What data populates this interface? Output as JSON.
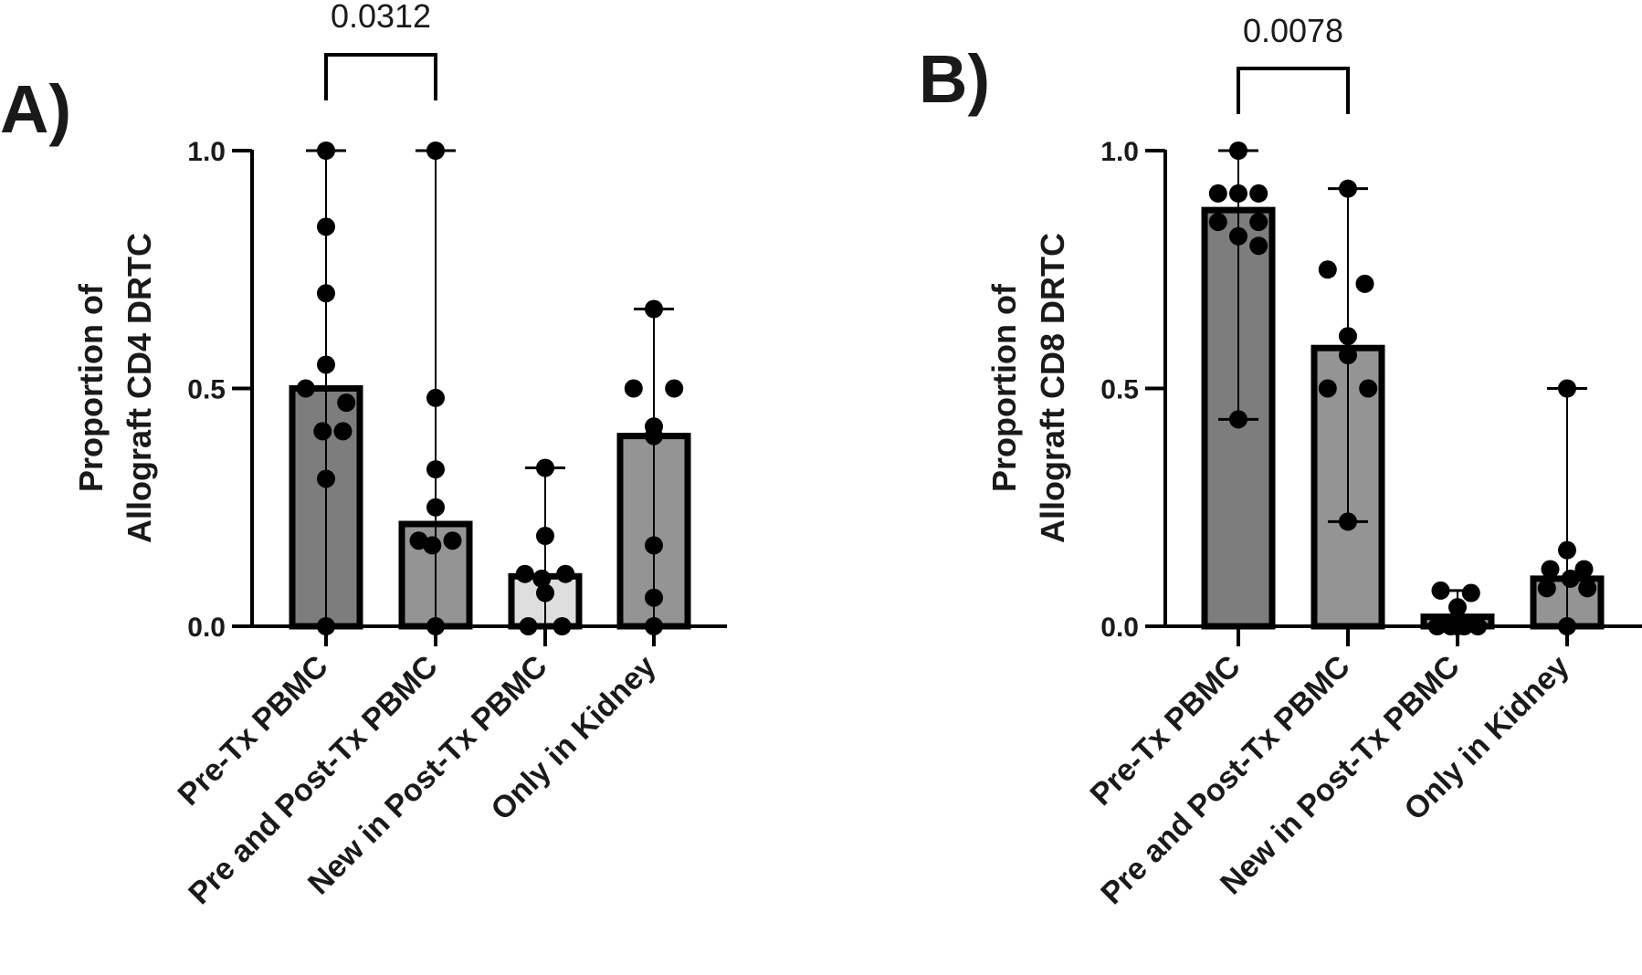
{
  "chart_data": [
    {
      "type": "bar",
      "panel_label": "A)",
      "ylabel_lines": [
        "Proportion of",
        "Allograft CD4 DRTC"
      ],
      "ylim": [
        0,
        1
      ],
      "yticks": [
        0,
        0.5,
        1
      ],
      "ytick_labels": [
        "0.0",
        "0.5",
        "1.0"
      ],
      "categories": [
        "Pre-Tx PBMC",
        "Pre and Post-Tx PBMC",
        "New in Post-Tx PBMC",
        "Only in Kidney"
      ],
      "values": [
        0.5,
        0.215,
        0.105,
        0.4
      ],
      "ranges": [
        [
          0,
          1.0
        ],
        [
          0,
          1.0
        ],
        [
          0,
          0.333
        ],
        [
          0,
          0.667
        ]
      ],
      "bar_colors": [
        "#7d7d7d",
        "#949494",
        "#dedede",
        "#949494"
      ],
      "points": [
        [
          [
            0,
            1.0
          ],
          [
            0,
            0.84
          ],
          [
            0,
            0.7
          ],
          [
            0,
            0.55
          ],
          [
            -0.3,
            0.5
          ],
          [
            0.3,
            0.47
          ],
          [
            -0.05,
            0.41
          ],
          [
            0.25,
            0.41
          ],
          [
            0,
            0.31
          ],
          [
            0,
            0.0
          ]
        ],
        [
          [
            0,
            1.0
          ],
          [
            0,
            0.48
          ],
          [
            0,
            0.33
          ],
          [
            0,
            0.25
          ],
          [
            -0.25,
            0.18
          ],
          [
            0.25,
            0.18
          ],
          [
            -0.05,
            0.17
          ],
          [
            0,
            0.0
          ]
        ],
        [
          [
            0,
            0.333
          ],
          [
            0,
            0.19
          ],
          [
            -0.3,
            0.11
          ],
          [
            0.3,
            0.11
          ],
          [
            -0.05,
            0.1
          ],
          [
            0,
            0.07
          ],
          [
            -0.25,
            0.0
          ],
          [
            0.25,
            0.0
          ]
        ],
        [
          [
            0,
            0.667
          ],
          [
            -0.3,
            0.5
          ],
          [
            0.3,
            0.5
          ],
          [
            0,
            0.42
          ],
          [
            0,
            0.4
          ],
          [
            0,
            0.17
          ],
          [
            0,
            0.06
          ],
          [
            0,
            0.0
          ]
        ]
      ],
      "significance": {
        "pair": [
          0,
          1
        ],
        "label": "0.0312"
      }
    },
    {
      "type": "bar",
      "panel_label": "B)",
      "ylabel_lines": [
        "Proportion of",
        "Allograft CD8 DRTC"
      ],
      "ylim": [
        0,
        1
      ],
      "yticks": [
        0,
        0.5,
        1
      ],
      "ytick_labels": [
        "0.0",
        "0.5",
        "1.0"
      ],
      "categories": [
        "Pre-Tx PBMC",
        "Pre and Post-Tx PBMC",
        "New in Post-Tx PBMC",
        "Only in Kidney"
      ],
      "values": [
        0.875,
        0.585,
        0.02,
        0.1
      ],
      "ranges": [
        [
          0.435,
          1.0
        ],
        [
          0.22,
          0.92
        ],
        [
          0,
          0.075
        ],
        [
          0,
          0.5
        ]
      ],
      "bar_colors": [
        "#7d7d7d",
        "#949494",
        "#949494",
        "#949494"
      ],
      "points": [
        [
          [
            0,
            1.0
          ],
          [
            -0.3,
            0.91
          ],
          [
            0.3,
            0.91
          ],
          [
            0,
            0.91
          ],
          [
            -0.3,
            0.85
          ],
          [
            0.3,
            0.85
          ],
          [
            0,
            0.82
          ],
          [
            0.3,
            0.8
          ],
          [
            0,
            0.435
          ]
        ],
        [
          [
            0,
            0.92
          ],
          [
            -0.3,
            0.75
          ],
          [
            0.25,
            0.72
          ],
          [
            0,
            0.61
          ],
          [
            0,
            0.57
          ],
          [
            -0.3,
            0.5
          ],
          [
            0.3,
            0.5
          ],
          [
            0,
            0.22
          ]
        ],
        [
          [
            -0.25,
            0.075
          ],
          [
            0.2,
            0.07
          ],
          [
            0,
            0.04
          ],
          [
            -0.3,
            0.0
          ],
          [
            -0.1,
            0.0
          ],
          [
            0.1,
            0.0
          ],
          [
            0.3,
            0.0
          ],
          [
            0,
            0.0
          ]
        ],
        [
          [
            0,
            0.5
          ],
          [
            0,
            0.16
          ],
          [
            -0.25,
            0.12
          ],
          [
            0.25,
            0.12
          ],
          [
            0.05,
            0.1
          ],
          [
            -0.3,
            0.08
          ],
          [
            0.3,
            0.08
          ],
          [
            0,
            0.0
          ]
        ]
      ],
      "significance": {
        "pair": [
          0,
          1
        ],
        "label": "0.0078"
      }
    }
  ]
}
